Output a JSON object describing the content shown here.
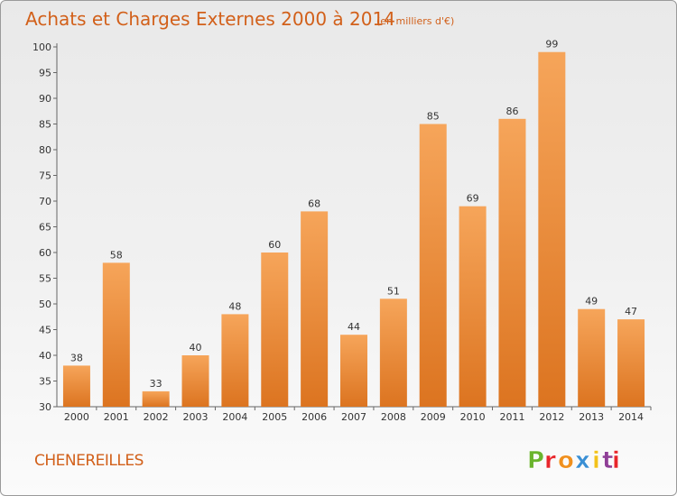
{
  "chart_data": {
    "type": "bar",
    "title": "Achats et Charges Externes 2000 à 2014",
    "subtitle": "(en milliers d'€)",
    "categories": [
      "2000",
      "2001",
      "2002",
      "2003",
      "2004",
      "2005",
      "2006",
      "2007",
      "2008",
      "2009",
      "2010",
      "2011",
      "2012",
      "2013",
      "2014"
    ],
    "values": [
      38,
      58,
      33,
      40,
      48,
      60,
      68,
      44,
      51,
      85,
      69,
      86,
      99,
      49,
      47
    ],
    "ylim": [
      30,
      100
    ],
    "yticks": [
      30,
      35,
      40,
      45,
      50,
      55,
      60,
      65,
      70,
      75,
      80,
      85,
      90,
      95,
      100
    ],
    "xlabel": "",
    "ylabel": "",
    "grid": false,
    "colors": {
      "bar_light": "#f6a55a",
      "bar_dark": "#dc7420",
      "title": "#d2601a"
    }
  },
  "footer": {
    "commune": "CHENEREILLES",
    "logo_text": "Proxiti",
    "logo_colors": [
      "#6ab42d",
      "#e8262b",
      "#f0901e",
      "#3a8fd4",
      "#f2c21b",
      "#8f3f97",
      "#e8262b"
    ]
  }
}
